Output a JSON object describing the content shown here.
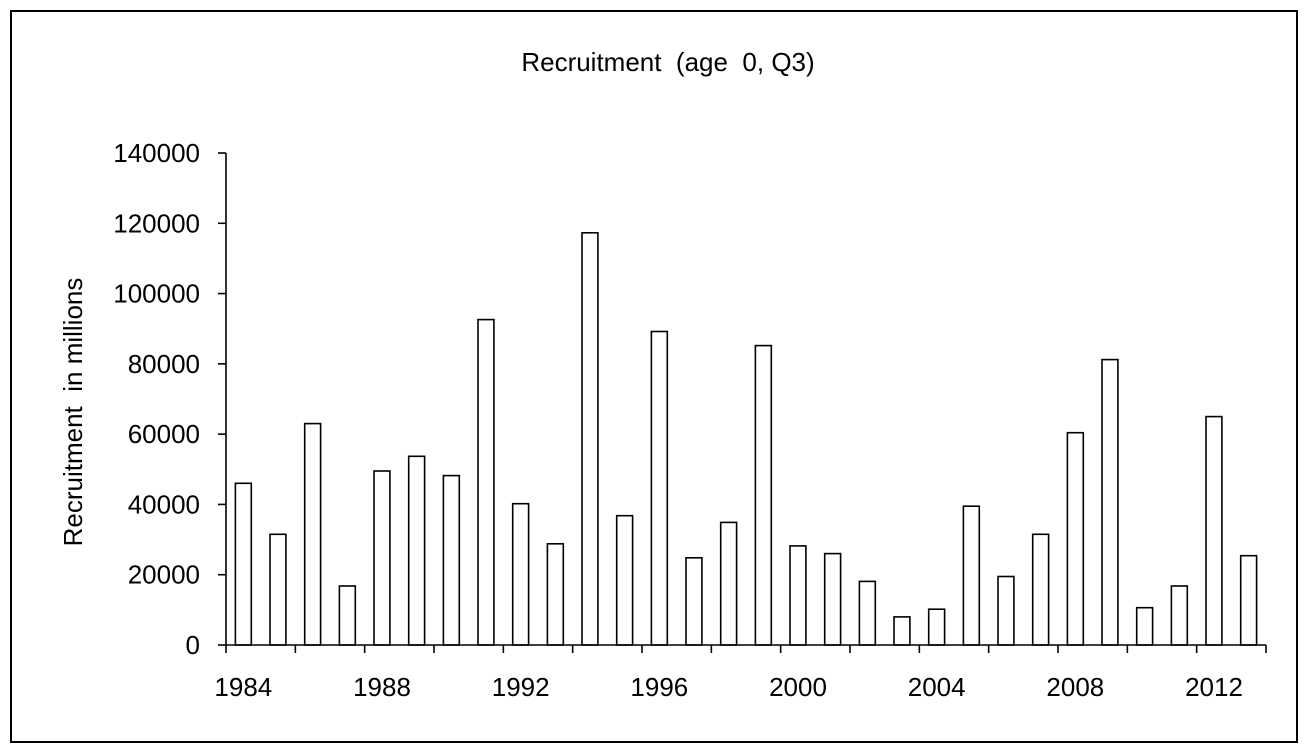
{
  "chart_data": {
    "type": "bar",
    "title": "Recruitment  (age  0, Q3)",
    "xlabel": "",
    "ylabel": "Recruitment  in millions",
    "ylim": [
      0,
      140000
    ],
    "yticks": [
      "0",
      "20000",
      "40000",
      "60000",
      "80000",
      "100000",
      "120000",
      "140000"
    ],
    "xtick_labels": [
      "1984",
      "1988",
      "1992",
      "1996",
      "2000",
      "2004",
      "2008",
      "2012"
    ],
    "categories": [
      "1984",
      "1985",
      "1986",
      "1987",
      "1988",
      "1989",
      "1990",
      "1991",
      "1992",
      "1993",
      "1994",
      "1995",
      "1996",
      "1997",
      "1998",
      "1999",
      "2000",
      "2001",
      "2002",
      "2003",
      "2004",
      "2005",
      "2006",
      "2007",
      "2008",
      "2009",
      "2010",
      "2011",
      "2012",
      "2013"
    ],
    "values": [
      46000,
      31500,
      63000,
      16800,
      49500,
      53700,
      48200,
      92600,
      40200,
      28800,
      117300,
      36800,
      89200,
      24800,
      34900,
      85200,
      28200,
      26000,
      18100,
      8000,
      10200,
      39500,
      19500,
      31500,
      60400,
      81200,
      10600,
      16800,
      65000,
      25400
    ],
    "grid": false,
    "legend": "none",
    "bar_fill": "#ffffff",
    "bar_stroke": "#000000"
  }
}
